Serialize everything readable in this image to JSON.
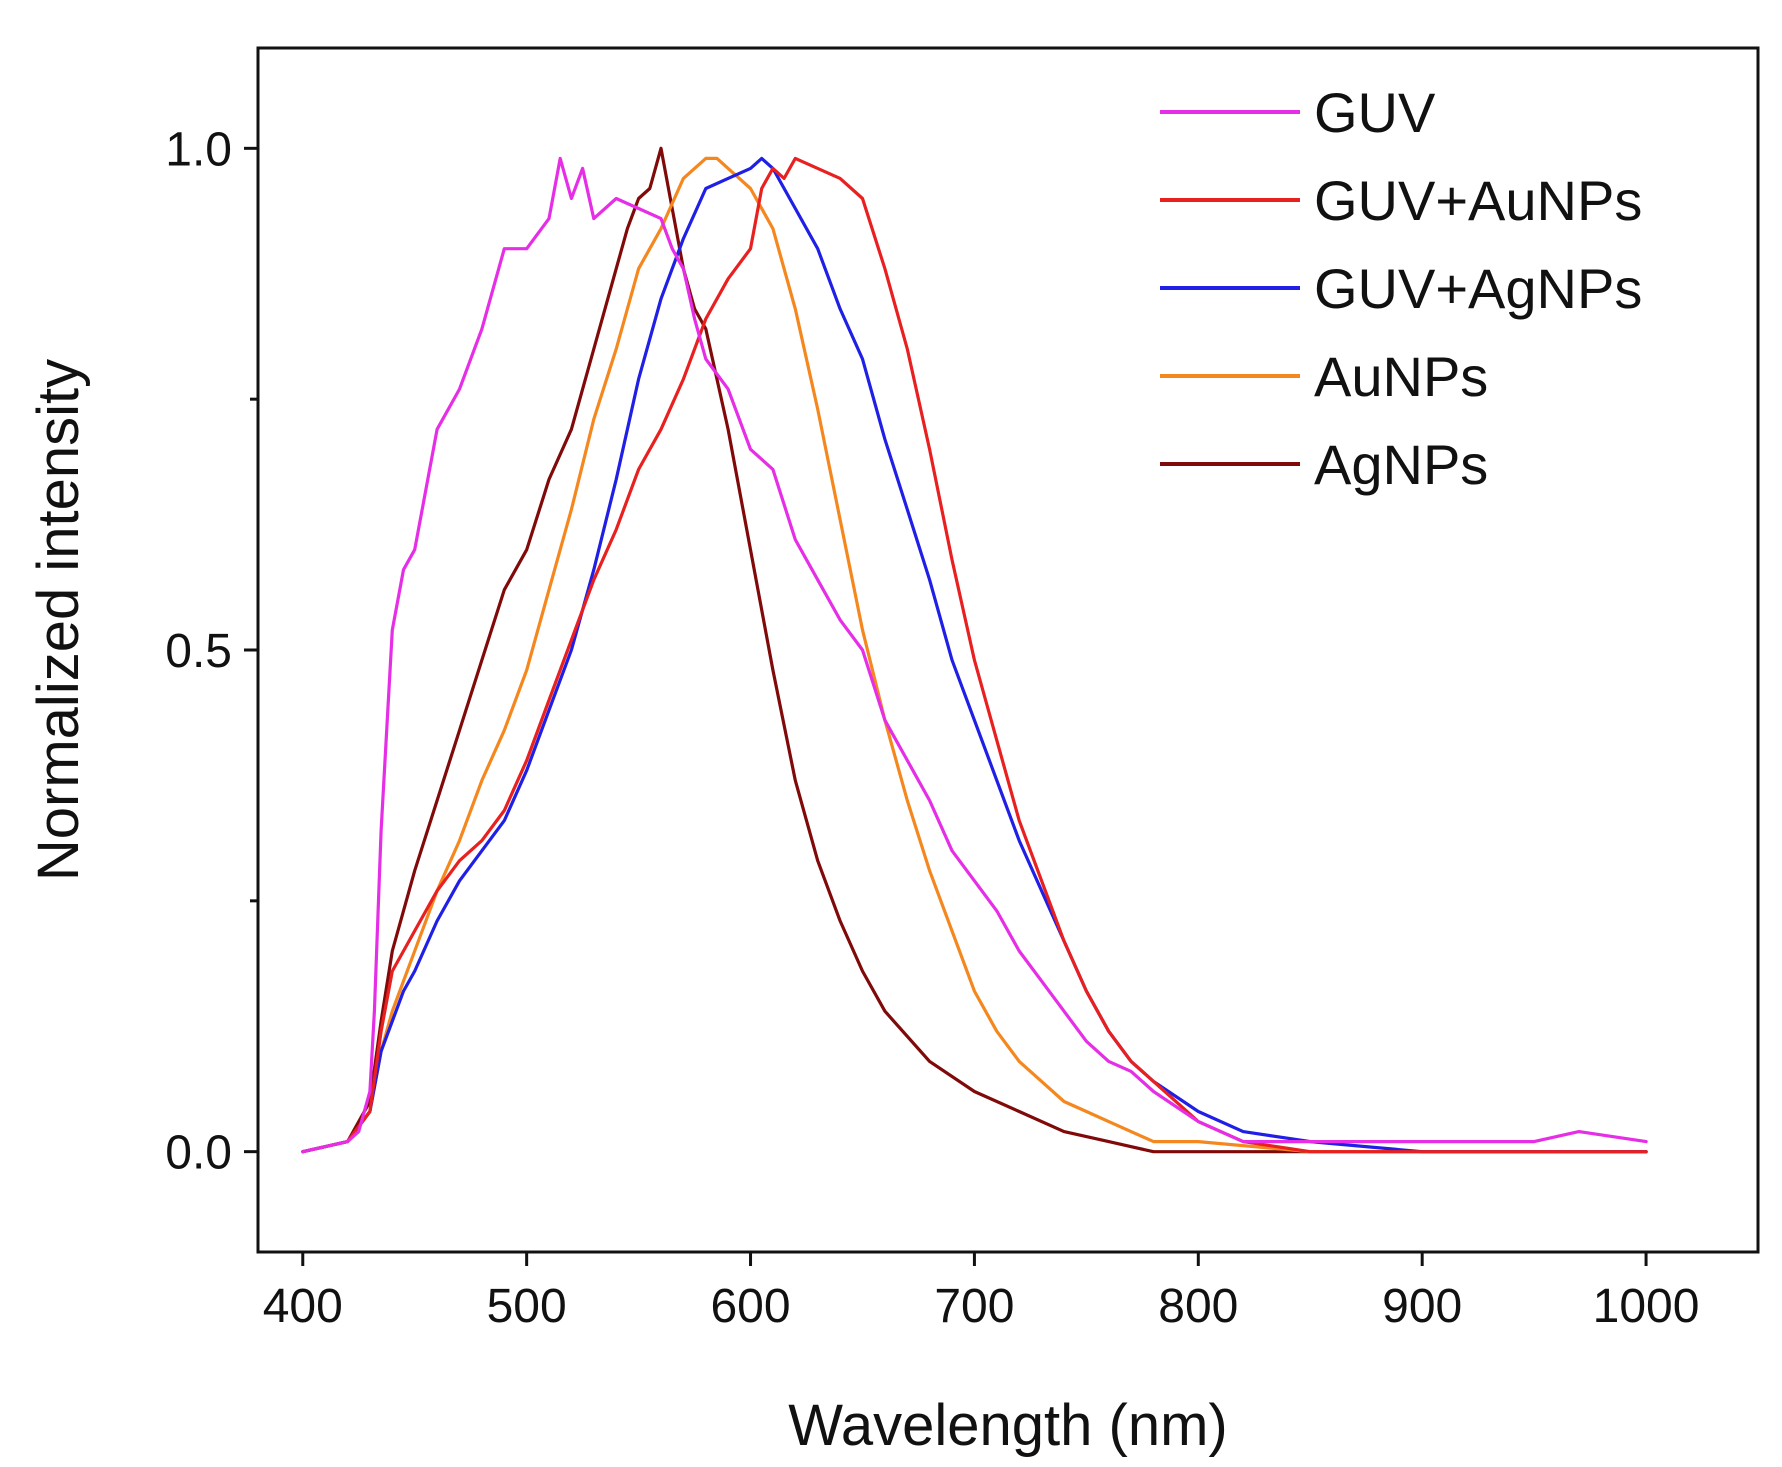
{
  "chart_data": {
    "type": "line",
    "title": "",
    "xlabel": "Wavelength (nm)",
    "ylabel": "Normalized intensity",
    "xlim": [
      380,
      1050
    ],
    "ylim": [
      -0.1,
      1.1
    ],
    "xticks": [
      400,
      500,
      600,
      700,
      800,
      900,
      1000
    ],
    "xtick_labels": [
      "400",
      "500",
      "600",
      "700",
      "800",
      "900",
      "1000"
    ],
    "yticks": [
      0.0,
      0.5,
      1.0
    ],
    "ytick_labels": [
      "0.0",
      "0.5",
      "1.0"
    ],
    "yticks_minor": [
      0.25,
      0.75
    ],
    "grid": false,
    "legend_position": "top-right",
    "series": [
      {
        "name": "GUV",
        "color": "#e62ee6",
        "x": [
          400,
          420,
          425,
          430,
          432,
          435,
          440,
          445,
          450,
          460,
          470,
          480,
          490,
          500,
          510,
          515,
          520,
          525,
          530,
          540,
          550,
          560,
          565,
          570,
          575,
          580,
          590,
          600,
          610,
          620,
          630,
          640,
          650,
          660,
          670,
          680,
          690,
          700,
          710,
          720,
          730,
          740,
          750,
          760,
          770,
          780,
          800,
          820,
          850,
          900,
          950,
          970,
          1000
        ],
        "y": [
          0.0,
          0.01,
          0.02,
          0.06,
          0.14,
          0.32,
          0.52,
          0.58,
          0.6,
          0.72,
          0.76,
          0.82,
          0.9,
          0.9,
          0.93,
          0.99,
          0.95,
          0.98,
          0.93,
          0.95,
          0.94,
          0.93,
          0.9,
          0.88,
          0.83,
          0.79,
          0.76,
          0.7,
          0.68,
          0.61,
          0.57,
          0.53,
          0.5,
          0.43,
          0.39,
          0.35,
          0.3,
          0.27,
          0.24,
          0.2,
          0.17,
          0.14,
          0.11,
          0.09,
          0.08,
          0.06,
          0.03,
          0.01,
          0.01,
          0.01,
          0.01,
          0.02,
          0.01
        ]
      },
      {
        "name": "GUV+AuNPs",
        "color": "#e8201f",
        "x": [
          400,
          420,
          430,
          435,
          440,
          445,
          450,
          460,
          470,
          480,
          490,
          500,
          510,
          520,
          530,
          540,
          550,
          560,
          570,
          580,
          590,
          600,
          605,
          610,
          615,
          620,
          630,
          640,
          650,
          660,
          670,
          680,
          690,
          700,
          710,
          720,
          730,
          740,
          750,
          760,
          770,
          780,
          800,
          820,
          850,
          900,
          1000
        ],
        "y": [
          0.0,
          0.01,
          0.04,
          0.12,
          0.18,
          0.2,
          0.22,
          0.26,
          0.29,
          0.31,
          0.34,
          0.39,
          0.45,
          0.51,
          0.57,
          0.62,
          0.68,
          0.72,
          0.77,
          0.83,
          0.87,
          0.9,
          0.96,
          0.98,
          0.97,
          0.99,
          0.98,
          0.97,
          0.95,
          0.88,
          0.8,
          0.7,
          0.59,
          0.49,
          0.41,
          0.33,
          0.27,
          0.21,
          0.16,
          0.12,
          0.09,
          0.07,
          0.03,
          0.01,
          0.0,
          0.0,
          0.0
        ]
      },
      {
        "name": "GUV+AgNPs",
        "color": "#1f1fe6",
        "x": [
          400,
          420,
          430,
          435,
          440,
          445,
          450,
          460,
          470,
          480,
          490,
          500,
          510,
          520,
          530,
          540,
          550,
          560,
          570,
          580,
          590,
          600,
          605,
          610,
          620,
          630,
          640,
          650,
          660,
          670,
          680,
          690,
          700,
          710,
          720,
          730,
          740,
          750,
          760,
          770,
          780,
          800,
          820,
          850,
          900,
          1000
        ],
        "y": [
          0.0,
          0.01,
          0.04,
          0.1,
          0.13,
          0.16,
          0.18,
          0.23,
          0.27,
          0.3,
          0.33,
          0.38,
          0.44,
          0.5,
          0.58,
          0.67,
          0.77,
          0.85,
          0.91,
          0.96,
          0.97,
          0.98,
          0.99,
          0.98,
          0.94,
          0.9,
          0.84,
          0.79,
          0.71,
          0.64,
          0.57,
          0.49,
          0.43,
          0.37,
          0.31,
          0.26,
          0.21,
          0.16,
          0.12,
          0.09,
          0.07,
          0.04,
          0.02,
          0.01,
          0.0,
          0.0
        ]
      },
      {
        "name": "AuNPs",
        "color": "#f5871f",
        "x": [
          400,
          420,
          430,
          435,
          440,
          445,
          450,
          460,
          470,
          480,
          490,
          500,
          510,
          520,
          530,
          540,
          550,
          560,
          570,
          580,
          585,
          590,
          595,
          600,
          610,
          620,
          630,
          640,
          650,
          660,
          670,
          680,
          690,
          700,
          710,
          720,
          730,
          740,
          750,
          760,
          780,
          800,
          850,
          1000
        ],
        "y": [
          0.0,
          0.01,
          0.04,
          0.1,
          0.14,
          0.17,
          0.2,
          0.26,
          0.31,
          0.37,
          0.42,
          0.48,
          0.56,
          0.64,
          0.73,
          0.8,
          0.88,
          0.92,
          0.97,
          0.99,
          0.99,
          0.98,
          0.97,
          0.96,
          0.92,
          0.84,
          0.74,
          0.63,
          0.52,
          0.43,
          0.35,
          0.28,
          0.22,
          0.16,
          0.12,
          0.09,
          0.07,
          0.05,
          0.04,
          0.03,
          0.01,
          0.01,
          0.0,
          0.0
        ]
      },
      {
        "name": "AgNPs",
        "color": "#800a0a",
        "x": [
          400,
          420,
          430,
          435,
          440,
          450,
          460,
          470,
          480,
          490,
          500,
          510,
          520,
          530,
          540,
          545,
          550,
          555,
          560,
          565,
          570,
          575,
          580,
          590,
          600,
          610,
          620,
          630,
          640,
          650,
          660,
          680,
          700,
          720,
          740,
          760,
          780,
          800,
          820,
          850,
          1000
        ],
        "y": [
          0.0,
          0.01,
          0.05,
          0.13,
          0.2,
          0.28,
          0.35,
          0.42,
          0.49,
          0.56,
          0.6,
          0.67,
          0.72,
          0.8,
          0.88,
          0.92,
          0.95,
          0.96,
          1.0,
          0.94,
          0.88,
          0.84,
          0.82,
          0.72,
          0.6,
          0.48,
          0.37,
          0.29,
          0.23,
          0.18,
          0.14,
          0.09,
          0.06,
          0.04,
          0.02,
          0.01,
          0.0,
          0.0,
          0.0,
          0.0,
          0.0
        ]
      }
    ]
  }
}
